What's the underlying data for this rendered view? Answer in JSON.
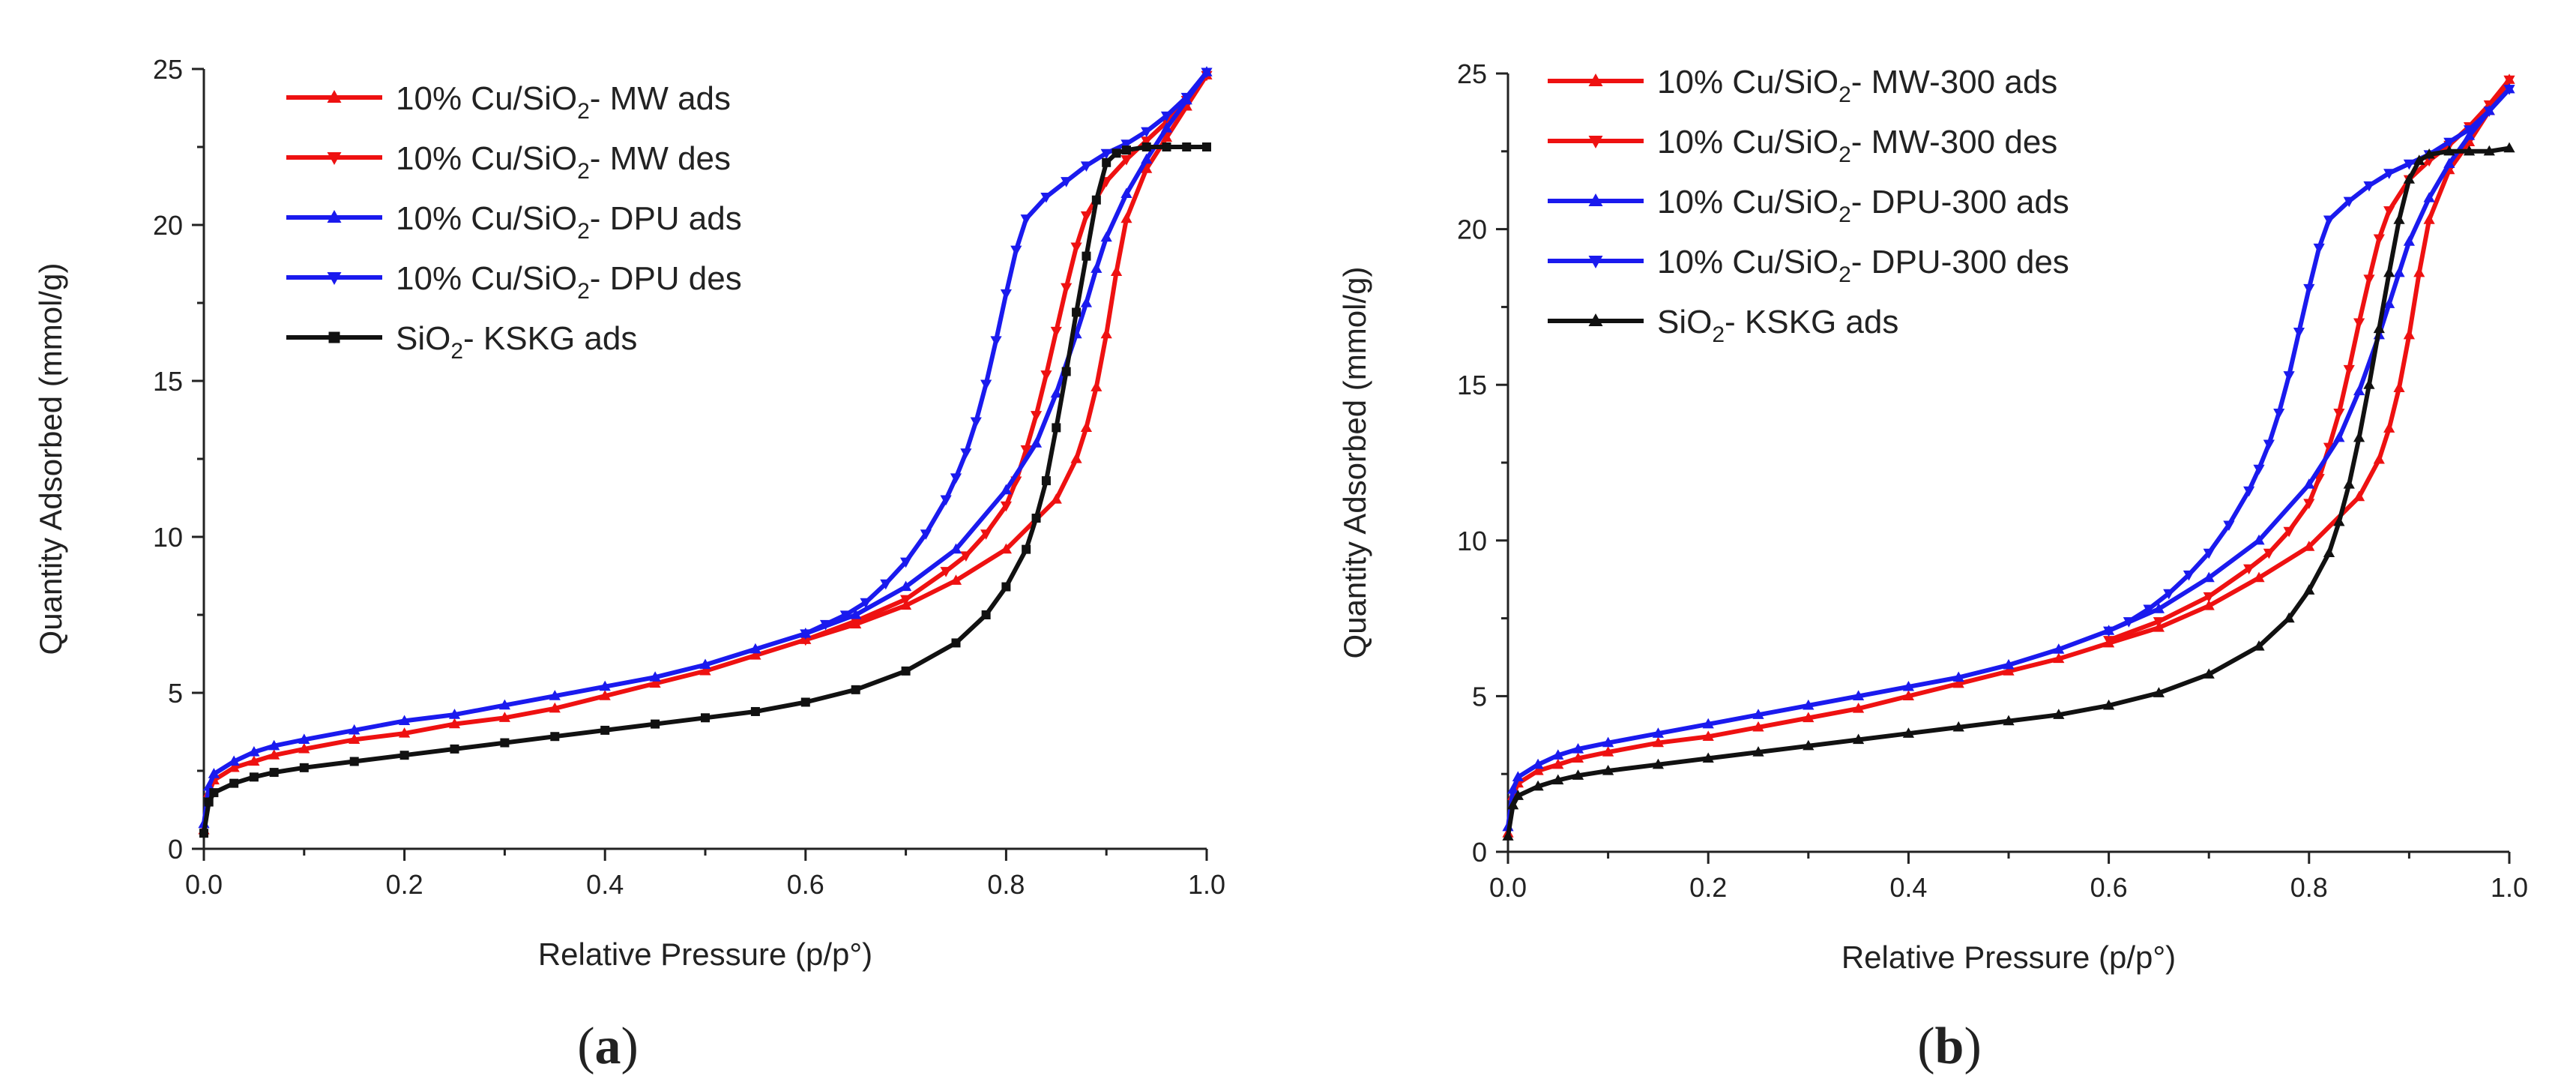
{
  "chart_data": [
    {
      "type": "line",
      "panel_label": "a",
      "xlabel": "Relative Pressure (p/p°)",
      "ylabel": "Quantity Adsorbed (mmol/g)",
      "xlim": [
        0.0,
        1.0
      ],
      "ylim": [
        0,
        25
      ],
      "xticks": [
        "0.0",
        "0.2",
        "0.4",
        "0.6",
        "0.8",
        "1.0"
      ],
      "yticks": [
        "0",
        "5",
        "10",
        "15",
        "20",
        "25"
      ],
      "legend_position": "top-left",
      "series": [
        {
          "name": "10% Cu/SiO2- MW ads",
          "label_prefix": "10% Cu/SiO",
          "label_sub": "2",
          "label_suffix": "- MW ads",
          "color": "#ee1111",
          "marker": "triangle-up",
          "x": [
            0.0,
            0.005,
            0.01,
            0.03,
            0.05,
            0.07,
            0.1,
            0.15,
            0.2,
            0.25,
            0.3,
            0.35,
            0.4,
            0.45,
            0.5,
            0.55,
            0.6,
            0.65,
            0.7,
            0.75,
            0.8,
            0.85,
            0.87,
            0.88,
            0.89,
            0.9,
            0.91,
            0.92,
            0.94,
            0.96,
            0.98,
            1.0
          ],
          "y": [
            0.6,
            1.8,
            2.2,
            2.6,
            2.8,
            3.0,
            3.2,
            3.5,
            3.7,
            4.0,
            4.2,
            4.5,
            4.9,
            5.3,
            5.7,
            6.2,
            6.7,
            7.2,
            7.8,
            8.6,
            9.6,
            11.2,
            12.5,
            13.5,
            14.8,
            16.5,
            18.5,
            20.2,
            21.8,
            22.8,
            23.8,
            24.8
          ]
        },
        {
          "name": "10% Cu/SiO2- MW des",
          "label_prefix": "10% Cu/SiO",
          "label_sub": "2",
          "label_suffix": "- MW des",
          "color": "#ee1111",
          "marker": "triangle-down",
          "x": [
            1.0,
            0.98,
            0.96,
            0.94,
            0.92,
            0.9,
            0.88,
            0.87,
            0.86,
            0.85,
            0.84,
            0.83,
            0.82,
            0.81,
            0.8,
            0.78,
            0.76,
            0.74,
            0.7,
            0.65,
            0.6
          ],
          "y": [
            24.8,
            24.0,
            23.3,
            22.7,
            22.1,
            21.4,
            20.3,
            19.3,
            18.0,
            16.6,
            15.2,
            13.9,
            12.8,
            11.8,
            11.0,
            10.1,
            9.4,
            8.9,
            8.0,
            7.3,
            6.7
          ]
        },
        {
          "name": "10% Cu/SiO2- DPU ads",
          "label_prefix": "10% Cu/SiO",
          "label_sub": "2",
          "label_suffix": "- DPU ads",
          "color": "#1a1aee",
          "marker": "triangle-up",
          "x": [
            0.0,
            0.005,
            0.01,
            0.03,
            0.05,
            0.07,
            0.1,
            0.15,
            0.2,
            0.25,
            0.3,
            0.35,
            0.4,
            0.45,
            0.5,
            0.55,
            0.6,
            0.65,
            0.7,
            0.75,
            0.8,
            0.83,
            0.85,
            0.87,
            0.88,
            0.89,
            0.9,
            0.92,
            0.94,
            0.96,
            0.98,
            1.0
          ],
          "y": [
            0.8,
            2.0,
            2.4,
            2.8,
            3.1,
            3.3,
            3.5,
            3.8,
            4.1,
            4.3,
            4.6,
            4.9,
            5.2,
            5.5,
            5.9,
            6.4,
            6.9,
            7.5,
            8.4,
            9.6,
            11.5,
            13.0,
            14.6,
            16.5,
            17.5,
            18.6,
            19.6,
            21.0,
            22.1,
            23.1,
            24.0,
            24.9
          ]
        },
        {
          "name": "10% Cu/SiO2- DPU des",
          "label_prefix": "10% Cu/SiO",
          "label_sub": "2",
          "label_suffix": "- DPU des",
          "color": "#1a1aee",
          "marker": "triangle-down",
          "x": [
            1.0,
            0.98,
            0.96,
            0.94,
            0.92,
            0.9,
            0.88,
            0.86,
            0.84,
            0.82,
            0.81,
            0.8,
            0.79,
            0.78,
            0.77,
            0.76,
            0.75,
            0.74,
            0.72,
            0.7,
            0.68,
            0.66,
            0.64,
            0.62,
            0.6
          ],
          "y": [
            24.9,
            24.1,
            23.5,
            23.0,
            22.6,
            22.3,
            21.9,
            21.4,
            20.9,
            20.2,
            19.2,
            17.8,
            16.3,
            14.9,
            13.7,
            12.7,
            11.9,
            11.2,
            10.1,
            9.2,
            8.5,
            7.9,
            7.5,
            7.2,
            6.9
          ]
        },
        {
          "name": "SiO2- KSKG ads",
          "label_prefix": "SiO",
          "label_sub": "2",
          "label_suffix": "- KSKG ads",
          "color": "#111111",
          "marker": "square",
          "x": [
            0.0,
            0.005,
            0.01,
            0.03,
            0.05,
            0.07,
            0.1,
            0.15,
            0.2,
            0.25,
            0.3,
            0.35,
            0.4,
            0.45,
            0.5,
            0.55,
            0.6,
            0.65,
            0.7,
            0.75,
            0.78,
            0.8,
            0.82,
            0.83,
            0.84,
            0.85,
            0.86,
            0.87,
            0.88,
            0.89,
            0.9,
            0.91,
            0.92,
            0.94,
            0.96,
            0.98,
            1.0
          ],
          "y": [
            0.5,
            1.5,
            1.8,
            2.1,
            2.3,
            2.45,
            2.6,
            2.8,
            3.0,
            3.2,
            3.4,
            3.6,
            3.8,
            4.0,
            4.2,
            4.4,
            4.7,
            5.1,
            5.7,
            6.6,
            7.5,
            8.4,
            9.6,
            10.6,
            11.8,
            13.5,
            15.3,
            17.2,
            19.0,
            20.8,
            22.0,
            22.3,
            22.4,
            22.5,
            22.5,
            22.5,
            22.5
          ]
        }
      ]
    },
    {
      "type": "line",
      "panel_label": "b",
      "xlabel": "Relative Pressure (p/p°)",
      "ylabel": "Quantity Adsorbed (mmol/g)",
      "xlim": [
        0.0,
        1.0
      ],
      "ylim": [
        0,
        25
      ],
      "xticks": [
        "0.0",
        "0.2",
        "0.4",
        "0.6",
        "0.8",
        "1.0"
      ],
      "yticks": [
        "0",
        "5",
        "10",
        "15",
        "20",
        "25"
      ],
      "legend_position": "top-left",
      "series": [
        {
          "name": "10% Cu/SiO2- MW-300 ads",
          "label_prefix": "10% Cu/SiO",
          "label_sub": "2",
          "label_suffix": "- MW-300 ads",
          "color": "#ee1111",
          "marker": "triangle-up",
          "x": [
            0.0,
            0.005,
            0.01,
            0.03,
            0.05,
            0.07,
            0.1,
            0.15,
            0.2,
            0.25,
            0.3,
            0.35,
            0.4,
            0.45,
            0.5,
            0.55,
            0.6,
            0.65,
            0.7,
            0.75,
            0.8,
            0.85,
            0.87,
            0.88,
            0.89,
            0.9,
            0.91,
            0.92,
            0.94,
            0.96,
            0.98,
            1.0
          ],
          "y": [
            0.6,
            1.8,
            2.2,
            2.6,
            2.8,
            3.0,
            3.2,
            3.5,
            3.7,
            4.0,
            4.3,
            4.6,
            5.0,
            5.4,
            5.8,
            6.2,
            6.7,
            7.2,
            7.9,
            8.8,
            9.8,
            11.4,
            12.6,
            13.6,
            14.9,
            16.6,
            18.6,
            20.3,
            21.9,
            22.8,
            23.8,
            24.8
          ]
        },
        {
          "name": "10% Cu/SiO2- MW-300 des",
          "label_prefix": "10% Cu/SiO",
          "label_sub": "2",
          "label_suffix": "- MW-300 des",
          "color": "#ee1111",
          "marker": "triangle-down",
          "x": [
            1.0,
            0.98,
            0.96,
            0.94,
            0.92,
            0.9,
            0.88,
            0.87,
            0.86,
            0.85,
            0.84,
            0.83,
            0.82,
            0.81,
            0.8,
            0.78,
            0.76,
            0.74,
            0.7,
            0.65,
            0.6
          ],
          "y": [
            24.8,
            24.0,
            23.3,
            22.7,
            22.2,
            21.6,
            20.6,
            19.7,
            18.4,
            17.0,
            15.5,
            14.1,
            13.0,
            12.0,
            11.2,
            10.3,
            9.6,
            9.1,
            8.2,
            7.4,
            6.8
          ]
        },
        {
          "name": "10% Cu/SiO2- DPU-300 ads",
          "label_prefix": "10% Cu/SiO",
          "label_sub": "2",
          "label_suffix": "- DPU-300 ads",
          "color": "#1a1aee",
          "marker": "triangle-up",
          "x": [
            0.0,
            0.005,
            0.01,
            0.03,
            0.05,
            0.07,
            0.1,
            0.15,
            0.2,
            0.25,
            0.3,
            0.35,
            0.4,
            0.45,
            0.5,
            0.55,
            0.6,
            0.65,
            0.7,
            0.75,
            0.8,
            0.83,
            0.85,
            0.87,
            0.88,
            0.89,
            0.9,
            0.92,
            0.94,
            0.96,
            0.98,
            1.0
          ],
          "y": [
            0.8,
            2.0,
            2.4,
            2.8,
            3.1,
            3.3,
            3.5,
            3.8,
            4.1,
            4.4,
            4.7,
            5.0,
            5.3,
            5.6,
            6.0,
            6.5,
            7.1,
            7.8,
            8.8,
            10.0,
            11.8,
            13.3,
            14.8,
            16.6,
            17.6,
            18.6,
            19.6,
            21.0,
            22.1,
            23.0,
            23.8,
            24.5
          ]
        },
        {
          "name": "10% Cu/SiO2- DPU-300 des",
          "label_prefix": "10% Cu/SiO",
          "label_sub": "2",
          "label_suffix": "- DPU-300 des",
          "color": "#1a1aee",
          "marker": "triangle-down",
          "x": [
            1.0,
            0.98,
            0.96,
            0.94,
            0.92,
            0.9,
            0.88,
            0.86,
            0.84,
            0.82,
            0.81,
            0.8,
            0.79,
            0.78,
            0.77,
            0.76,
            0.75,
            0.74,
            0.72,
            0.7,
            0.68,
            0.66,
            0.64,
            0.62,
            0.6
          ],
          "y": [
            24.5,
            23.8,
            23.2,
            22.8,
            22.4,
            22.1,
            21.8,
            21.4,
            20.9,
            20.3,
            19.4,
            18.1,
            16.7,
            15.3,
            14.1,
            13.1,
            12.3,
            11.6,
            10.5,
            9.6,
            8.9,
            8.3,
            7.8,
            7.4,
            7.1
          ]
        },
        {
          "name": "SiO2- KSKG ads",
          "label_prefix": "SiO",
          "label_sub": "2",
          "label_suffix": "- KSKG ads",
          "color": "#111111",
          "marker": "triangle-up",
          "x": [
            0.0,
            0.005,
            0.01,
            0.03,
            0.05,
            0.07,
            0.1,
            0.15,
            0.2,
            0.25,
            0.3,
            0.35,
            0.4,
            0.45,
            0.5,
            0.55,
            0.6,
            0.65,
            0.7,
            0.75,
            0.78,
            0.8,
            0.82,
            0.83,
            0.84,
            0.85,
            0.86,
            0.87,
            0.88,
            0.89,
            0.9,
            0.91,
            0.92,
            0.94,
            0.96,
            0.98,
            1.0
          ],
          "y": [
            0.5,
            1.5,
            1.8,
            2.1,
            2.3,
            2.45,
            2.6,
            2.8,
            3.0,
            3.2,
            3.4,
            3.6,
            3.8,
            4.0,
            4.2,
            4.4,
            4.7,
            5.1,
            5.7,
            6.6,
            7.5,
            8.4,
            9.6,
            10.6,
            11.8,
            13.3,
            15.0,
            16.8,
            18.6,
            20.3,
            21.6,
            22.2,
            22.4,
            22.5,
            22.5,
            22.5,
            22.6
          ]
        }
      ]
    }
  ]
}
